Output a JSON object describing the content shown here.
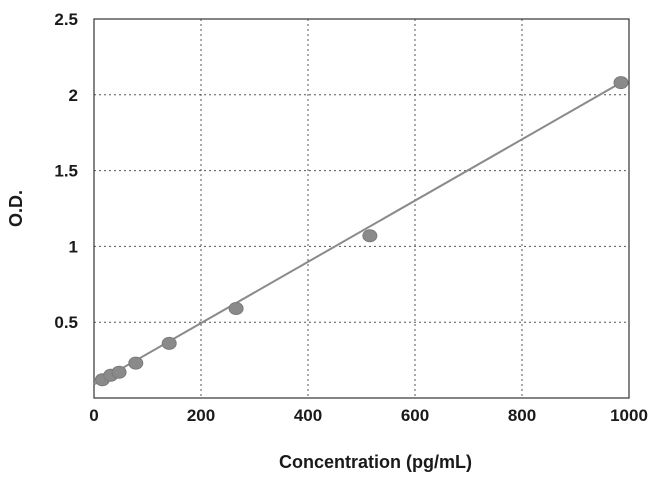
{
  "chart_data": {
    "type": "scatter",
    "title": "",
    "xlabel": "Concentration (pg/mL)",
    "ylabel": "O.D.",
    "xlim": [
      0,
      1000
    ],
    "ylim": [
      0,
      2.5
    ],
    "x_ticks": [
      0,
      200,
      400,
      600,
      800,
      1000
    ],
    "y_ticks": [
      0.5,
      1,
      1.5,
      2,
      2.5
    ],
    "x_tick_labels": [
      "0",
      "200",
      "400",
      "600",
      "800",
      "1000"
    ],
    "y_tick_labels": [
      "0.5",
      "1",
      "1.5",
      "2",
      "2.5"
    ],
    "grid": true,
    "legend": "none",
    "marker_color": "#8a8a8a",
    "line_color": "#8a8a8a",
    "points": [
      {
        "x": 15.6,
        "y": 0.12
      },
      {
        "x": 31.25,
        "y": 0.15
      },
      {
        "x": 46.9,
        "y": 0.17
      },
      {
        "x": 78.1,
        "y": 0.23
      },
      {
        "x": 140.6,
        "y": 0.36
      },
      {
        "x": 265.6,
        "y": 0.59
      },
      {
        "x": 515.6,
        "y": 1.07
      },
      {
        "x": 1015.6,
        "y": 2.08
      }
    ],
    "fit_line": {
      "x": [
        0,
        1015.6
      ],
      "y": [
        0.09,
        2.08
      ]
    }
  }
}
